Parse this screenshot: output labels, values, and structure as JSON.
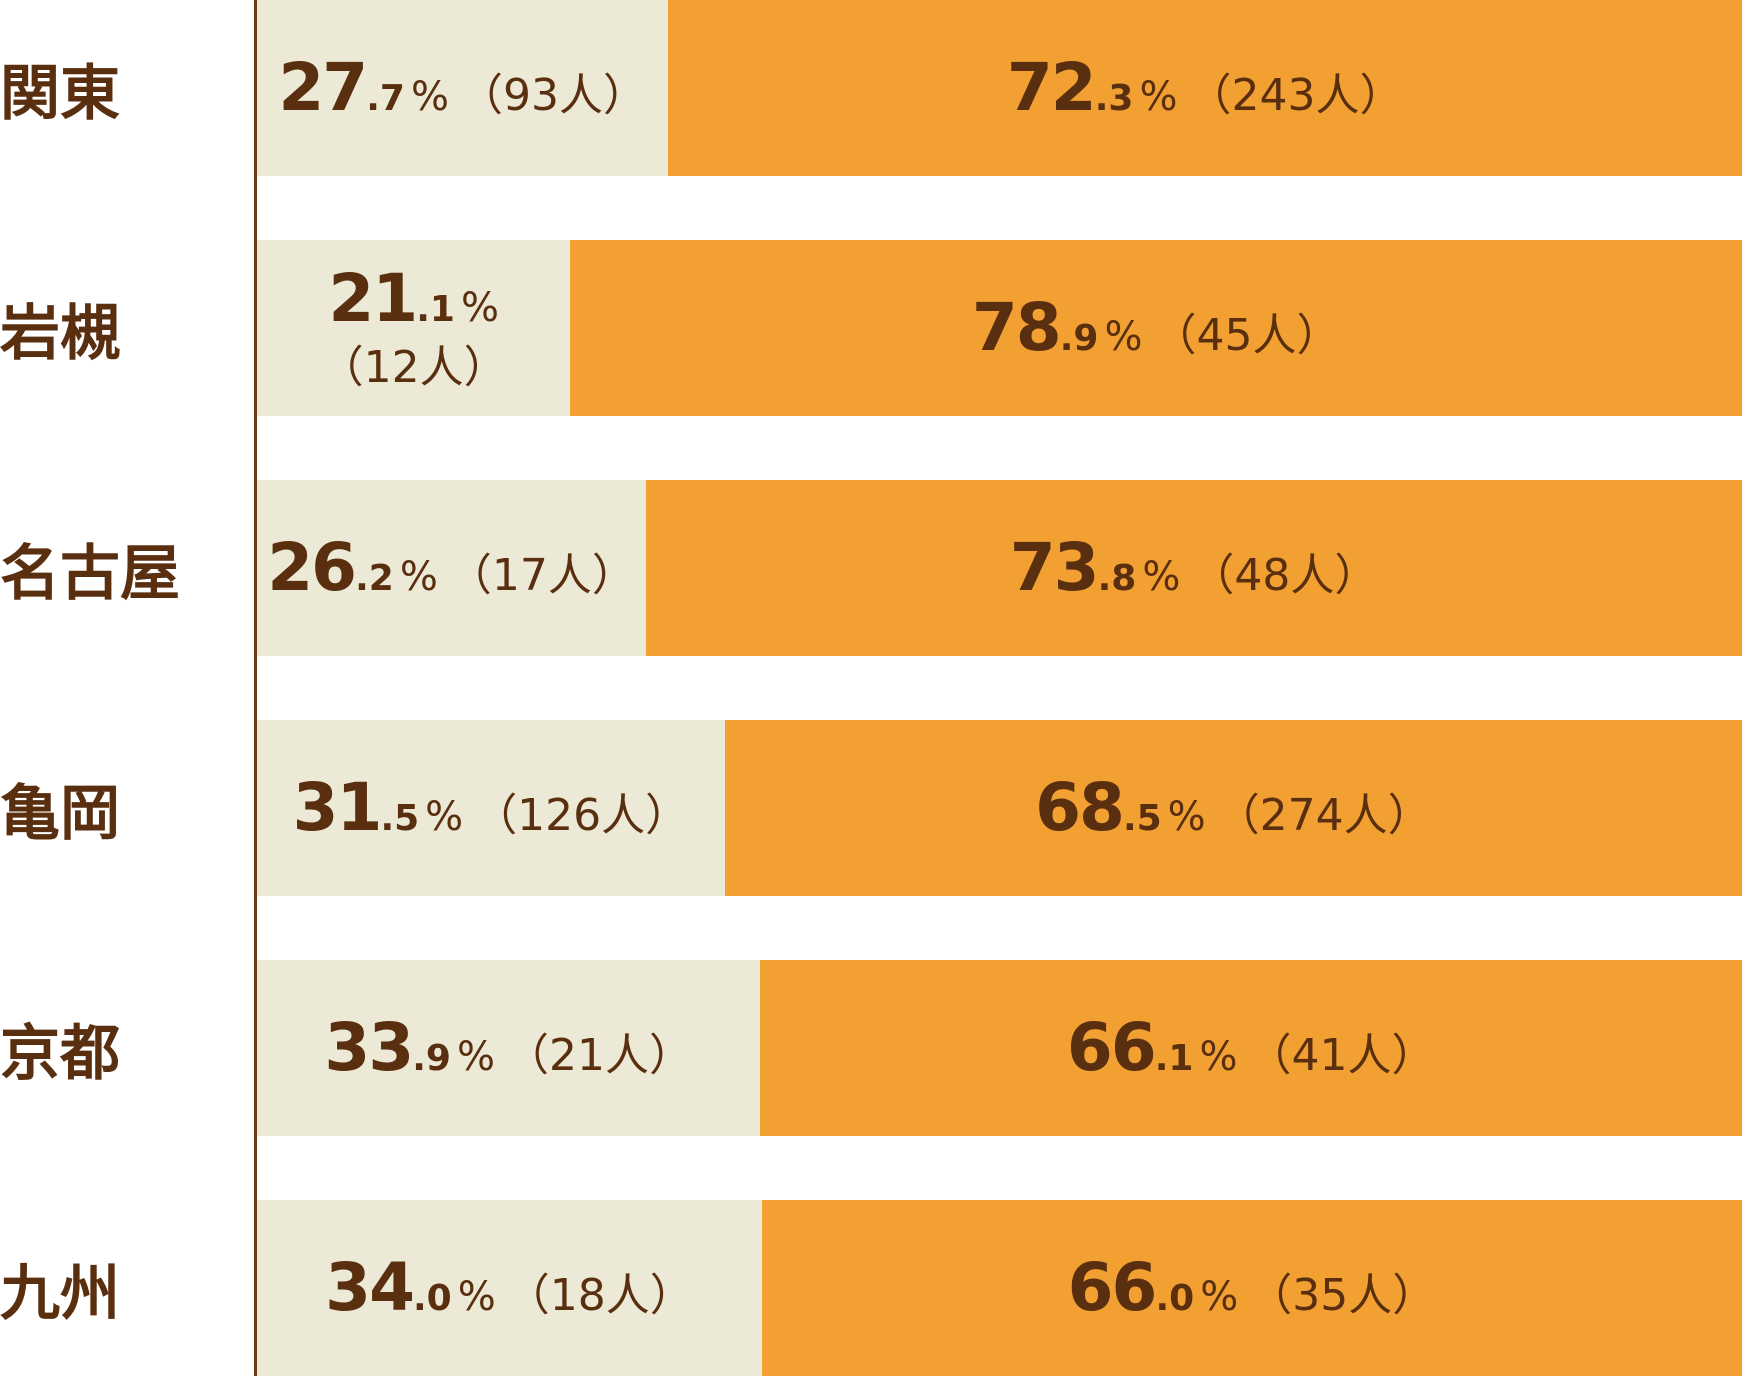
{
  "chart_data": {
    "type": "bar",
    "orientation": "horizontal",
    "stacked": true,
    "normalized_percent": true,
    "categories": [
      "関東",
      "岩槻",
      "名古屋",
      "亀岡",
      "京都",
      "九州"
    ],
    "series": [
      {
        "color": "#ece9d6",
        "values": [
          27.7,
          21.1,
          26.2,
          31.5,
          33.9,
          34.0
        ],
        "int_labels": [
          "27",
          "21",
          "26",
          "31",
          "33",
          "34"
        ],
        "dec_labels": [
          ".7",
          ".1",
          ".2",
          ".5",
          ".9",
          ".0"
        ],
        "count_labels": [
          "（93人）",
          "（12人）",
          "（17人）",
          "（126人）",
          "（21人）",
          "（18人）"
        ]
      },
      {
        "color": "#f3a033",
        "values": [
          72.3,
          78.9,
          73.8,
          68.5,
          66.1,
          66.0
        ],
        "int_labels": [
          "72",
          "78",
          "73",
          "68",
          "66",
          "66"
        ],
        "dec_labels": [
          ".3",
          ".9",
          ".8",
          ".5",
          ".1",
          ".0"
        ],
        "count_labels": [
          "（243人）",
          "（45人）",
          "（48人）",
          "（274人）",
          "（41人）",
          "（35人）"
        ]
      }
    ],
    "percent_sign": "%",
    "xlim": [
      0,
      100
    ],
    "legend": "none",
    "grid": false
  },
  "colors": {
    "text": "#5a2f0f",
    "axis": "#6b3a17",
    "background": "#ffffff"
  }
}
